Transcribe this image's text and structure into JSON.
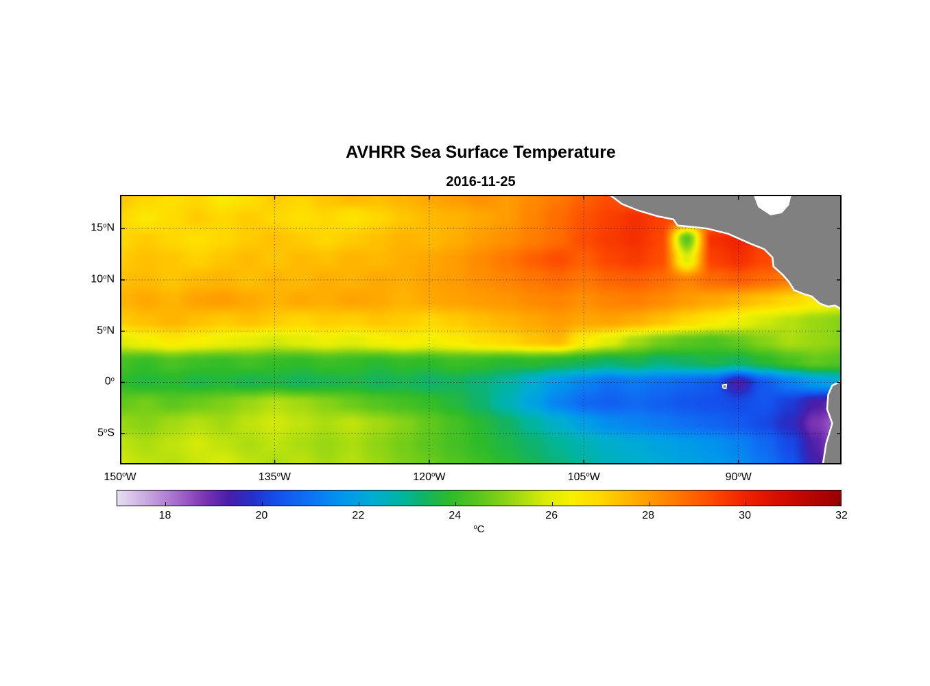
{
  "title": "AVHRR Sea Surface Temperature",
  "subtitle": "2016-11-25",
  "degree_mark": "o",
  "chart_data": {
    "type": "heatmap",
    "variable": "Sea Surface Temperature",
    "lon_range": [
      -150,
      -80
    ],
    "lat_range": [
      -8.0,
      18.3
    ],
    "grid_on": true,
    "x_ticks": [
      {
        "value": -150,
        "num": "150",
        "hemi": "W"
      },
      {
        "value": -135,
        "num": "135",
        "hemi": "W"
      },
      {
        "value": -120,
        "num": "120",
        "hemi": "W"
      },
      {
        "value": -105,
        "num": "105",
        "hemi": "W"
      },
      {
        "value": -90,
        "num": "90",
        "hemi": "W"
      }
    ],
    "y_ticks": [
      {
        "value": 15,
        "num": "15",
        "hemi": "N"
      },
      {
        "value": 10,
        "num": "10",
        "hemi": "N"
      },
      {
        "value": 5,
        "num": "5",
        "hemi": "N"
      },
      {
        "value": 0,
        "num": "0",
        "hemi": ""
      },
      {
        "value": -5,
        "num": "5",
        "hemi": "S"
      }
    ],
    "colorbar": {
      "min": 17,
      "max": 32,
      "ticks": [
        18,
        20,
        22,
        24,
        26,
        28,
        30,
        32
      ],
      "unit": "C",
      "stops": [
        [
          17.0,
          "#E8DEF2"
        ],
        [
          17.6,
          "#C9A8E0"
        ],
        [
          18.2,
          "#A86FCE"
        ],
        [
          18.8,
          "#7C35B4"
        ],
        [
          19.3,
          "#4A1EA8"
        ],
        [
          19.8,
          "#2430C8"
        ],
        [
          20.3,
          "#1450EC"
        ],
        [
          21.0,
          "#0E74F4"
        ],
        [
          21.7,
          "#0098EC"
        ],
        [
          22.3,
          "#00ADD2"
        ],
        [
          22.9,
          "#00B4A0"
        ],
        [
          23.4,
          "#14B360"
        ],
        [
          23.9,
          "#2EBB2A"
        ],
        [
          24.6,
          "#62C81C"
        ],
        [
          25.3,
          "#A2DA12"
        ],
        [
          25.9,
          "#DCEC08"
        ],
        [
          26.4,
          "#F8F000"
        ],
        [
          27.0,
          "#FFD800"
        ],
        [
          27.6,
          "#FFB400"
        ],
        [
          28.2,
          "#FF9000"
        ],
        [
          28.8,
          "#FF6C00"
        ],
        [
          29.4,
          "#FC4600"
        ],
        [
          30.0,
          "#F02400"
        ],
        [
          30.7,
          "#D60E00"
        ],
        [
          31.4,
          "#B80400"
        ],
        [
          32.0,
          "#960000"
        ]
      ]
    },
    "grid": {
      "lons": [
        -150,
        -147.5,
        -145,
        -142.5,
        -140,
        -137.5,
        -135,
        -132.5,
        -130,
        -127.5,
        -125,
        -122.5,
        -120,
        -117.5,
        -115,
        -112.5,
        -110,
        -107.5,
        -105,
        -102.5,
        -100,
        -97.5,
        -95,
        -92.5,
        -90,
        -87.5,
        -85,
        -82.5,
        -80
      ],
      "lats": [
        -8,
        -6,
        -4,
        -2,
        0,
        2,
        4,
        6,
        8,
        10,
        12,
        14,
        16,
        18
      ],
      "sst": [
        [
          25.8,
          25.6,
          25.5,
          25.7,
          25.9,
          25.6,
          25.4,
          25.6,
          25.3,
          25.5,
          25.2,
          24.9,
          24.7,
          24.4,
          24.1,
          23.8,
          23.5,
          23.2,
          22.9,
          22.6,
          22.4,
          22.2,
          22.0,
          21.8,
          21.5,
          21.0,
          20.4,
          19.4,
          18.2
        ],
        [
          25.6,
          25.4,
          25.6,
          25.8,
          25.6,
          25.4,
          25.6,
          25.4,
          25.2,
          25.4,
          25.1,
          24.8,
          24.5,
          24.2,
          23.9,
          23.6,
          23.3,
          23.0,
          22.7,
          22.4,
          22.2,
          22.0,
          21.8,
          21.6,
          21.3,
          20.8,
          20.2,
          19.2,
          18.0
        ],
        [
          25.2,
          25.0,
          25.3,
          25.5,
          25.3,
          25.6,
          25.8,
          25.6,
          25.4,
          25.6,
          25.3,
          25.0,
          24.6,
          24.2,
          23.8,
          23.4,
          22.9,
          22.4,
          21.9,
          21.5,
          21.3,
          21.1,
          20.9,
          20.7,
          20.5,
          20.2,
          19.7,
          18.8,
          18.2
        ],
        [
          24.6,
          24.8,
          24.5,
          24.7,
          24.9,
          25.2,
          25.5,
          25.3,
          25.0,
          24.7,
          24.4,
          24.2,
          24.0,
          23.7,
          23.3,
          22.7,
          22.0,
          21.3,
          20.8,
          20.6,
          20.8,
          20.6,
          20.4,
          20.3,
          20.2,
          20.4,
          20.0,
          19.3,
          18.8
        ],
        [
          23.9,
          23.7,
          23.8,
          23.6,
          23.7,
          23.5,
          23.6,
          23.4,
          23.5,
          23.6,
          23.4,
          23.5,
          23.3,
          23.4,
          23.2,
          22.9,
          22.3,
          21.7,
          21.3,
          20.9,
          21.1,
          20.9,
          20.7,
          20.5,
          19.3,
          20.5,
          21.2,
          21.8,
          22.2
        ],
        [
          24.2,
          24.0,
          24.3,
          24.1,
          24.0,
          24.2,
          24.0,
          23.9,
          24.1,
          24.0,
          23.8,
          24.0,
          23.9,
          24.1,
          24.0,
          23.8,
          23.9,
          23.7,
          23.5,
          23.3,
          23.5,
          23.2,
          23.4,
          23.6,
          23.4,
          23.8,
          24.2,
          24.6,
          24.4
        ],
        [
          26.0,
          26.3,
          26.6,
          26.4,
          26.2,
          26.0,
          25.8,
          26.0,
          26.2,
          26.0,
          26.3,
          26.5,
          26.3,
          26.5,
          26.8,
          27.0,
          27.3,
          27.5,
          26.5,
          26.0,
          25.3,
          24.8,
          24.5,
          24.3,
          24.6,
          25.0,
          25.4,
          25.2,
          25.0
        ],
        [
          27.2,
          27.4,
          27.6,
          27.4,
          27.2,
          27.4,
          27.2,
          27.0,
          27.2,
          27.1,
          27.3,
          27.2,
          27.0,
          27.2,
          27.4,
          27.6,
          27.8,
          28.0,
          27.8,
          27.9,
          27.7,
          27.4,
          27.0,
          26.6,
          26.2,
          25.8,
          25.5,
          25.2,
          25.0
        ],
        [
          27.6,
          27.8,
          27.6,
          27.9,
          28.0,
          27.8,
          27.6,
          27.8,
          27.7,
          27.9,
          27.8,
          27.6,
          27.8,
          27.9,
          28.0,
          28.1,
          28.3,
          28.4,
          28.2,
          28.4,
          28.5,
          28.3,
          28.0,
          27.8,
          27.6,
          27.3,
          27.0,
          26.6,
          26.3
        ],
        [
          27.4,
          27.5,
          27.3,
          27.5,
          27.6,
          27.4,
          27.6,
          27.5,
          27.7,
          27.6,
          27.8,
          27.7,
          27.9,
          28.0,
          28.2,
          28.4,
          28.6,
          28.8,
          28.6,
          28.9,
          29.0,
          28.8,
          28.4,
          28.8,
          29.0,
          28.8,
          28.5,
          28.0,
          27.6
        ],
        [
          27.2,
          27.4,
          27.3,
          27.1,
          27.3,
          27.5,
          27.3,
          27.5,
          27.4,
          27.6,
          27.5,
          27.7,
          27.8,
          28.0,
          28.3,
          28.6,
          29.0,
          29.3,
          29.0,
          29.4,
          29.6,
          29.3,
          26.0,
          29.5,
          29.8,
          29.4,
          29.0,
          28.6,
          28.2
        ],
        [
          27.0,
          27.2,
          27.0,
          26.8,
          27.0,
          27.2,
          27.4,
          27.2,
          27.0,
          27.2,
          27.4,
          27.6,
          27.5,
          27.7,
          28.0,
          28.2,
          28.5,
          28.8,
          29.3,
          29.6,
          29.8,
          29.4,
          24.5,
          29.8,
          30.0,
          29.5,
          28.8,
          28.3,
          28.0
        ],
        [
          27.0,
          26.6,
          26.9,
          27.2,
          27.0,
          27.2,
          27.0,
          26.8,
          27.0,
          26.7,
          27.0,
          27.3,
          27.5,
          27.6,
          27.8,
          28.0,
          28.4,
          28.8,
          29.2,
          29.5,
          29.8,
          29.5,
          29.0,
          28.5,
          28.2,
          28.0,
          27.8,
          27.5,
          27.3
        ],
        [
          27.3,
          27.0,
          26.8,
          27.0,
          26.5,
          26.8,
          27.2,
          27.0,
          27.3,
          27.5,
          27.4,
          27.6,
          27.8,
          28.0,
          28.2,
          28.0,
          28.3,
          28.6,
          29.0,
          29.3,
          29.0,
          28.8,
          28.5,
          28.3,
          28.0,
          27.8,
          27.5,
          27.3,
          27.2
        ]
      ]
    },
    "land": {
      "fill": "#808080",
      "coast": "#FFFFFF",
      "polygons": [
        {
          "name": "central-america",
          "points": [
            [
              -103.4,
              19.0
            ],
            [
              -101.3,
              17.4
            ],
            [
              -99.8,
              16.8
            ],
            [
              -97.8,
              16.2
            ],
            [
              -96.3,
              15.9
            ],
            [
              -95.9,
              15.3
            ],
            [
              -94.8,
              15.2
            ],
            [
              -93.0,
              15.0
            ],
            [
              -91.0,
              14.5
            ],
            [
              -89.0,
              13.6
            ],
            [
              -87.5,
              13.0
            ],
            [
              -86.7,
              12.2
            ],
            [
              -86.6,
              11.3
            ],
            [
              -85.7,
              10.5
            ],
            [
              -85.1,
              9.8
            ],
            [
              -84.6,
              9.0
            ],
            [
              -83.6,
              8.6
            ],
            [
              -82.9,
              8.4
            ],
            [
              -82.1,
              7.7
            ],
            [
              -81.3,
              7.4
            ],
            [
              -80.6,
              7.5
            ],
            [
              -79.5,
              6.8
            ],
            [
              -79.0,
              19.0
            ]
          ]
        },
        {
          "name": "caribbean-gap",
          "fill": "#FFFFFF",
          "stroke": "none",
          "points": [
            [
              -88.8,
              19.0
            ],
            [
              -88.1,
              17.1
            ],
            [
              -86.9,
              16.3
            ],
            [
              -85.8,
              16.5
            ],
            [
              -85.1,
              17.3
            ],
            [
              -84.7,
              19.0
            ]
          ]
        },
        {
          "name": "south-america",
          "points": [
            [
              -79.0,
              0.6
            ],
            [
              -80.9,
              -0.3
            ],
            [
              -81.3,
              -1.2
            ],
            [
              -81.4,
              -2.6
            ],
            [
              -80.9,
              -4.0
            ],
            [
              -81.5,
              -6.0
            ],
            [
              -81.9,
              -8.6
            ],
            [
              -79.0,
              -8.6
            ]
          ]
        }
      ]
    },
    "islands": [
      {
        "name": "galapagos",
        "points": [
          [
            -91.55,
            -0.25
          ],
          [
            -91.15,
            -0.2
          ],
          [
            -91.2,
            -0.6
          ],
          [
            -91.5,
            -0.55
          ]
        ]
      }
    ]
  }
}
